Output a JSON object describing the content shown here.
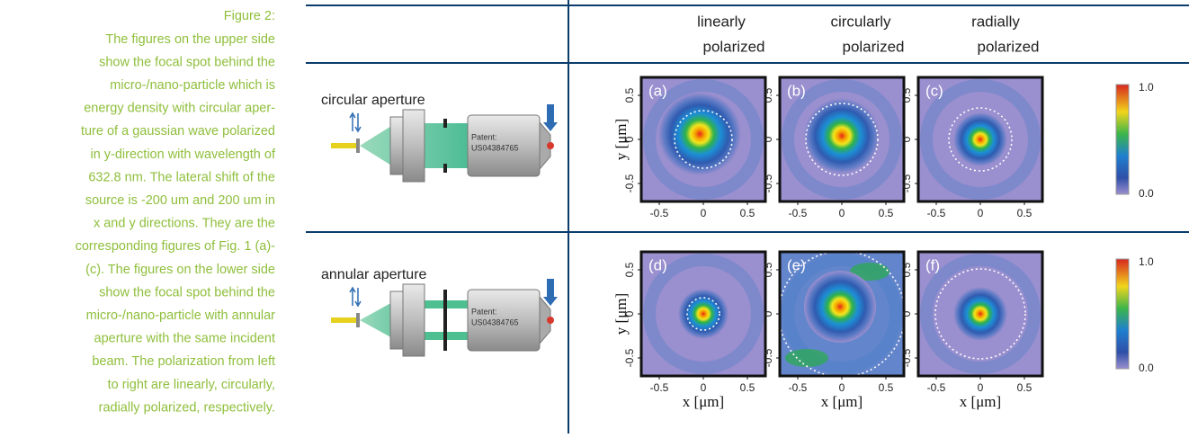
{
  "caption": {
    "title": "Figure 2:",
    "lines": [
      "The figures on the upper side",
      "show the focal spot behind the",
      "micro-/nano-particle which is",
      "energy density with circular aper-",
      "ture of a gaussian wave polarized",
      "in y-direction with wavelength of",
      "632.8 nm. The lateral shift of the",
      "source is -200 um and 200 um in",
      "x and y directions. They are the",
      "corresponding figures of Fig. 1 (a)-",
      "(c).  The figures on the lower side",
      "show the focal spot behind the",
      "micro-/nano-particle with annular",
      "aperture with the same incident",
      "beam. The polarization from left",
      "to right are linearly, circularly,",
      "radially polarized, respectively."
    ]
  },
  "figure": {
    "columns": [
      [
        "linearly",
        "polarized"
      ],
      [
        "circularly",
        "polarized"
      ],
      [
        "radially",
        "polarized"
      ]
    ],
    "rows": [
      {
        "label": "circular aperture",
        "panels": [
          "(a)",
          "(b)",
          "(c)"
        ]
      },
      {
        "label": "annular aperture",
        "panels": [
          "(d)",
          "(e)",
          "(f)"
        ]
      }
    ],
    "patent": [
      "Patent:",
      "US04384765"
    ],
    "x_ticks": [
      "-0.5",
      "0",
      "0.5"
    ],
    "y_ticks": [
      "0.5",
      "0",
      "-0.5"
    ],
    "x_label": "x [μm]",
    "y_label": "y [μm]",
    "colorbar": [
      "1.0",
      "0.0"
    ]
  }
}
